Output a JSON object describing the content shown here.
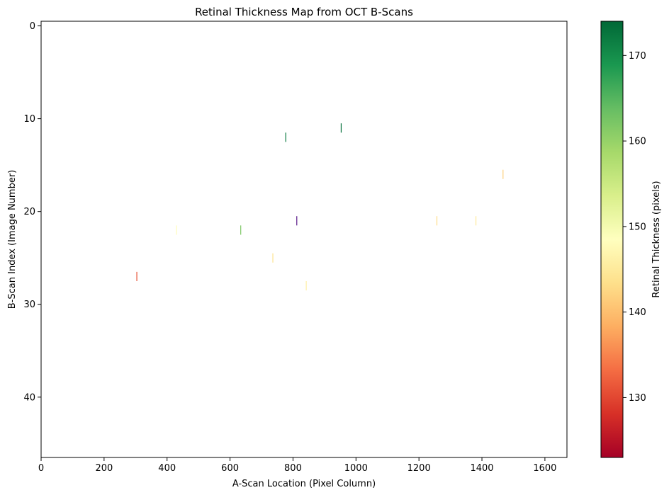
{
  "chart_data": {
    "type": "heatmap",
    "title": "Retinal Thickness Map from OCT B-Scans",
    "xlabel": "A-Scan Location (Pixel Column)",
    "ylabel": "B-Scan Index (Image Number)",
    "xlim": [
      0,
      1670
    ],
    "ylim": [
      46.5,
      -0.5
    ],
    "y_axis_inverted": true,
    "xticks": [
      0,
      200,
      400,
      600,
      800,
      1000,
      1200,
      1400,
      1600
    ],
    "yticks": [
      0,
      10,
      20,
      30,
      40
    ],
    "colormap": "RdYlGn",
    "colorbar": {
      "label": "Retinal Thickness (pixels)",
      "min": 123,
      "max": 174,
      "ticks": [
        130,
        140,
        150,
        160,
        170
      ]
    },
    "grid": false,
    "points": [
      {
        "x": 953,
        "y": 11,
        "value": 173
      },
      {
        "x": 777,
        "y": 12,
        "value": 172
      },
      {
        "x": 1467,
        "y": 16,
        "value": 142
      },
      {
        "x": 812,
        "y": 21,
        "value": 100,
        "color": "#5b1a8a"
      },
      {
        "x": 1257,
        "y": 21,
        "value": 143
      },
      {
        "x": 1381,
        "y": 21,
        "value": 145
      },
      {
        "x": 430,
        "y": 22,
        "value": 148
      },
      {
        "x": 634,
        "y": 22,
        "value": 162
      },
      {
        "x": 736,
        "y": 25,
        "value": 144
      },
      {
        "x": 304,
        "y": 27,
        "value": 131
      },
      {
        "x": 842,
        "y": 28,
        "value": 146
      }
    ]
  }
}
